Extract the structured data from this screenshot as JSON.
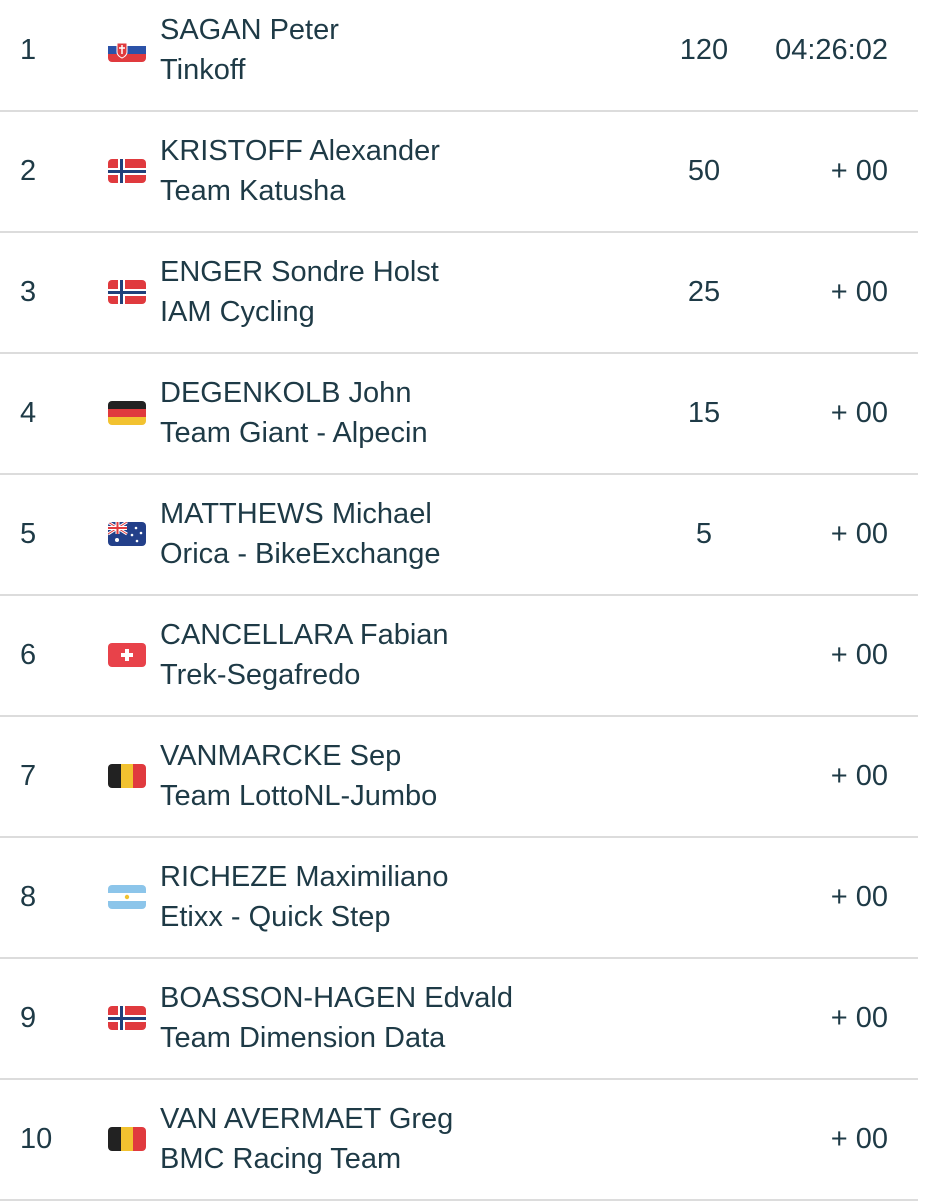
{
  "results": [
    {
      "rank": 1,
      "rider": "SAGAN Peter",
      "team": "Tinkoff",
      "points": 120,
      "time": "04:26:02"
    },
    {
      "rank": 2,
      "rider": "KRISTOFF Alexander",
      "team": "Team Katusha",
      "points": 50,
      "time": "+ 00"
    },
    {
      "rank": 3,
      "rider": "ENGER Sondre Holst",
      "team": "IAM Cycling",
      "points": 25,
      "time": "+ 00"
    },
    {
      "rank": 4,
      "rider": "DEGENKOLB John",
      "team": "Team Giant - Alpecin",
      "points": 15,
      "time": "+ 00"
    },
    {
      "rank": 5,
      "rider": "MATTHEWS Michael",
      "team": "Orica - BikeExchange",
      "points": 5,
      "time": "+ 00"
    },
    {
      "rank": 6,
      "rider": "CANCELLARA Fabian",
      "team": "Trek-Segafredo",
      "time": "+ 00"
    },
    {
      "rank": 7,
      "rider": "VANMARCKE Sep",
      "team": "Team LottoNL-Jumbo",
      "time": "+ 00"
    },
    {
      "rank": 8,
      "rider": "RICHEZE Maximiliano",
      "team": "Etixx - Quick Step",
      "time": "+ 00"
    },
    {
      "rank": 9,
      "rider": "BOASSON-HAGEN Edvald",
      "team": "Team Dimension Data",
      "time": "+ 00"
    },
    {
      "rank": 10,
      "rider": "VAN AVERMAET Greg",
      "team": "BMC Racing Team",
      "time": "+ 00"
    }
  ]
}
